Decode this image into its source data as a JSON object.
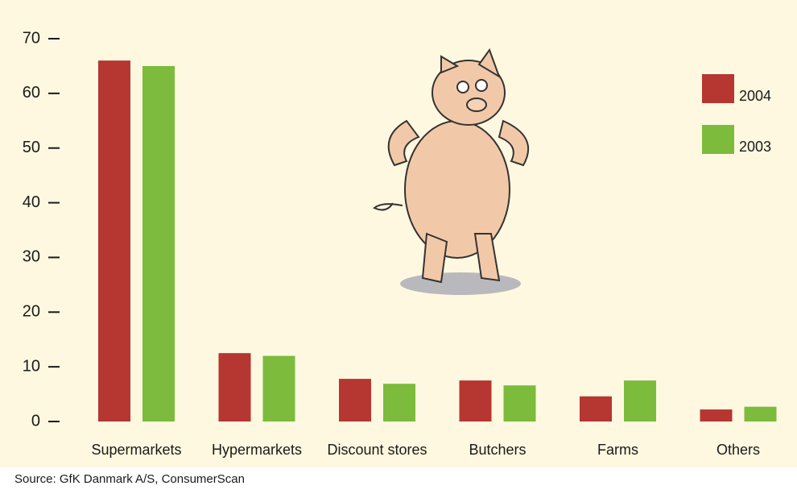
{
  "chart_data": {
    "type": "bar",
    "categories": [
      "Supermarkets",
      "Hypermarkets",
      "Discount stores",
      "Butchers",
      "Farms",
      "Others"
    ],
    "series": [
      {
        "name": "2004",
        "color": "#b63632",
        "values": [
          66,
          12.5,
          7.8,
          7.5,
          4.6,
          2.2
        ]
      },
      {
        "name": "2003",
        "color": "#7cbb3c",
        "values": [
          65,
          12,
          6.9,
          6.6,
          7.5,
          2.7
        ]
      }
    ],
    "ylim": [
      0,
      70
    ],
    "yticks": [
      0,
      10,
      20,
      30,
      40,
      50,
      60,
      70
    ],
    "legend": "top-right",
    "source": "Source: GfK Danmark A/S, ConsumerScan"
  }
}
